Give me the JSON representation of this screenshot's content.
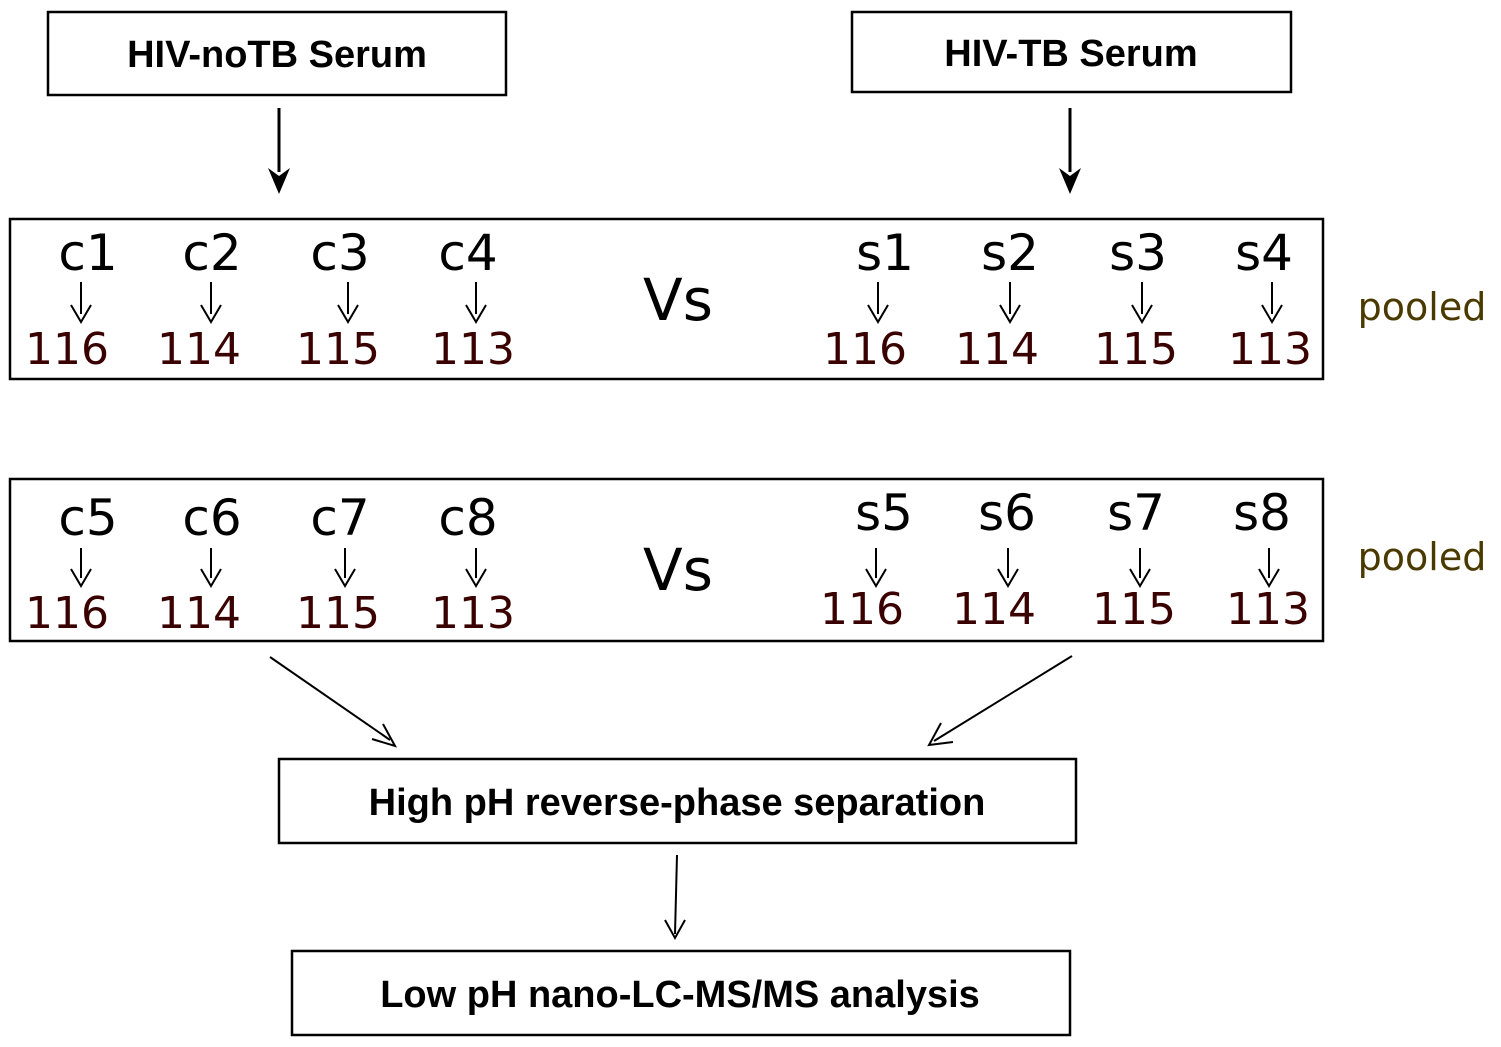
{
  "top_boxes": {
    "left": "HIV-noTB Serum",
    "right": "HIV-TB Serum"
  },
  "groups": [
    {
      "controls": [
        {
          "sample": "c1",
          "tag": "116"
        },
        {
          "sample": "c2",
          "tag": "114"
        },
        {
          "sample": "c3",
          "tag": "115"
        },
        {
          "sample": "c4",
          "tag": "113"
        }
      ],
      "versus": "Vs",
      "subjects": [
        {
          "sample": "s1",
          "tag": "116"
        },
        {
          "sample": "s2",
          "tag": "114"
        },
        {
          "sample": "s3",
          "tag": "115"
        },
        {
          "sample": "s4",
          "tag": "113"
        }
      ],
      "note": "pooled"
    },
    {
      "controls": [
        {
          "sample": "c5",
          "tag": "116"
        },
        {
          "sample": "c6",
          "tag": "114"
        },
        {
          "sample": "c7",
          "tag": "115"
        },
        {
          "sample": "c8",
          "tag": "113"
        }
      ],
      "versus": "Vs",
      "subjects": [
        {
          "sample": "s5",
          "tag": "116"
        },
        {
          "sample": "s6",
          "tag": "114"
        },
        {
          "sample": "s7",
          "tag": "115"
        },
        {
          "sample": "s8",
          "tag": "113"
        }
      ],
      "note": "pooled"
    }
  ],
  "steps": {
    "separation": "High pH reverse-phase separation",
    "analysis": "Low pH nano-LC-MS/MS analysis"
  }
}
